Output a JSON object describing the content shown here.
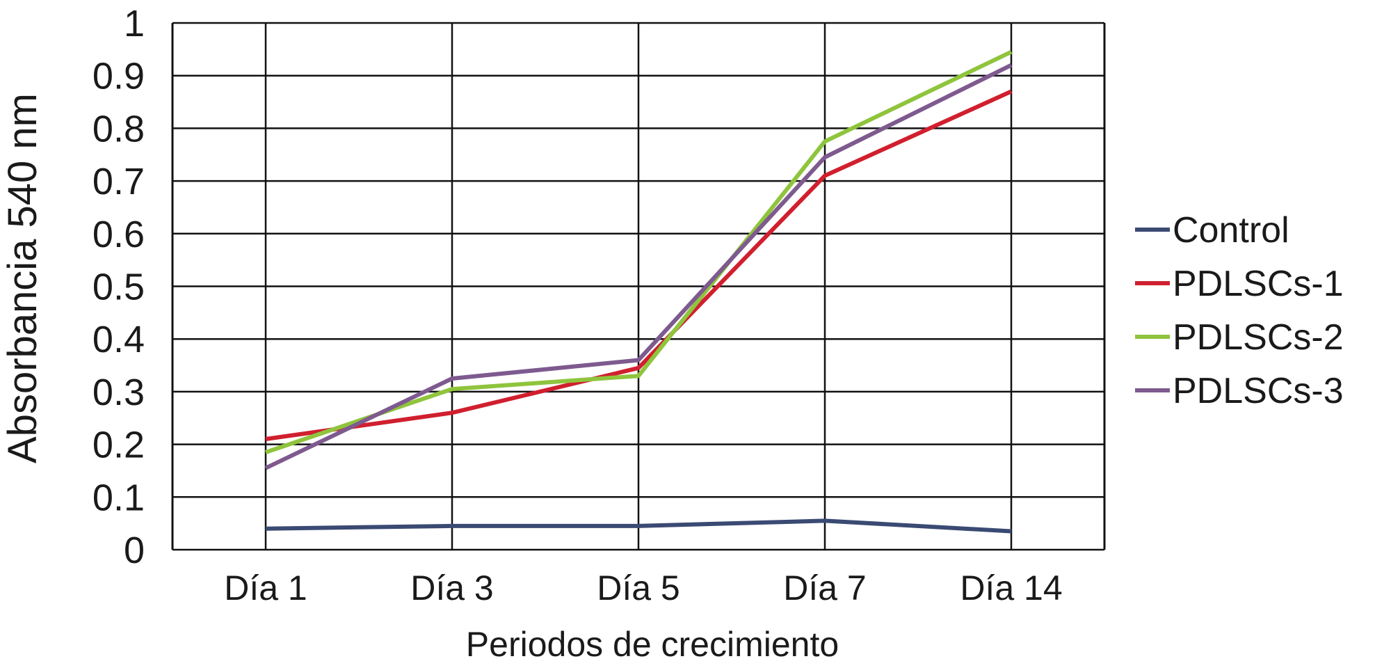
{
  "chart_data": {
    "type": "line",
    "title": "",
    "xlabel": "Periodos de crecimiento",
    "ylabel": "Absorbancia 540 nm",
    "categories": [
      "Día 1",
      "Día 3",
      "Día 5",
      "Día 7",
      "Día 14"
    ],
    "ylim": [
      0,
      1
    ],
    "yticks": [
      "0",
      "0.1",
      "0.2",
      "0.3",
      "0.4",
      "0.5",
      "0.6",
      "0.7",
      "0.8",
      "0.9",
      "1"
    ],
    "grid": true,
    "legend_position": "right",
    "series": [
      {
        "name": "Control",
        "color": "#3b4a73",
        "values": [
          0.04,
          0.045,
          0.045,
          0.055,
          0.035
        ]
      },
      {
        "name": "PDLSCs-1",
        "color": "#d01f2e",
        "values": [
          0.21,
          0.26,
          0.345,
          0.71,
          0.87
        ]
      },
      {
        "name": "PDLSCs-2",
        "color": "#8fc43d",
        "values": [
          0.185,
          0.305,
          0.33,
          0.775,
          0.945
        ]
      },
      {
        "name": "PDLSCs-3",
        "color": "#7e5a8f",
        "values": [
          0.155,
          0.325,
          0.36,
          0.745,
          0.92
        ]
      }
    ]
  }
}
